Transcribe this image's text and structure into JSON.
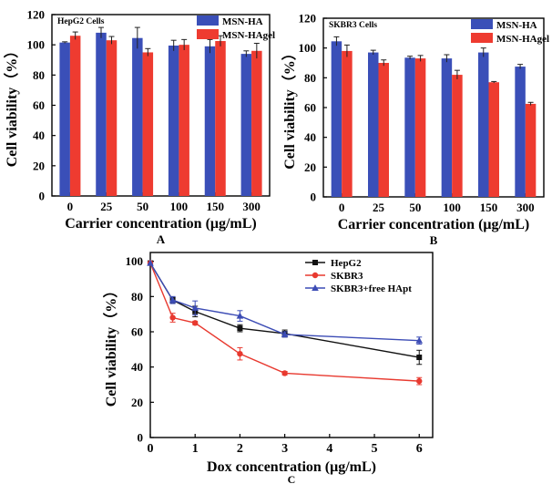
{
  "colors": {
    "blue": "#3a4fb8",
    "red": "#ee3b30",
    "black": "#111111",
    "lineBlue": "#3c4cb5",
    "lineRed": "#e8392f"
  },
  "chart_data": [
    {
      "id": "A",
      "type": "bar",
      "panel_label": "A",
      "title": "HepG2 Cells",
      "xlabel": "Carrier concentration (μg/mL)",
      "ylabel": "Cell viability（%）",
      "ylim": [
        0,
        120
      ],
      "yticks": [
        0,
        20,
        40,
        60,
        80,
        100,
        120
      ],
      "categories": [
        "0",
        "25",
        "50",
        "100",
        "150",
        "300"
      ],
      "legend_position": "top-right",
      "series": [
        {
          "name": "MSN-HA",
          "color": "#3a4fb8",
          "values": [
            101.5,
            108,
            104.5,
            99.5,
            99,
            94
          ],
          "errors": [
            0.5,
            3.5,
            7,
            3.5,
            4.5,
            2
          ]
        },
        {
          "name": "MSN-HAgel",
          "color": "#ee3b30",
          "values": [
            106,
            103,
            95,
            100,
            102.5,
            96
          ],
          "errors": [
            2.5,
            2.5,
            2.5,
            3.5,
            3.5,
            5
          ]
        }
      ]
    },
    {
      "id": "B",
      "type": "bar",
      "panel_label": "B",
      "title": "SKBR3 Cells",
      "xlabel": "Carrier concentration (μg/mL)",
      "ylabel": "Cell viability（%）",
      "ylim": [
        0,
        120
      ],
      "yticks": [
        0,
        20,
        40,
        60,
        80,
        100,
        120
      ],
      "categories": [
        "0",
        "25",
        "50",
        "100",
        "150",
        "300"
      ],
      "legend_position": "top-right",
      "series": [
        {
          "name": "MSN-HA",
          "color": "#3a4fb8",
          "values": [
            104.5,
            97,
            93.5,
            93,
            97,
            87.5
          ],
          "errors": [
            3,
            1.5,
            1,
            2.5,
            3,
            1.5
          ]
        },
        {
          "name": "MSN-HAgel",
          "color": "#ee3b30",
          "values": [
            98,
            90,
            93,
            82,
            77,
            62.5
          ],
          "errors": [
            4,
            2,
            2,
            3,
            0.5,
            1
          ]
        }
      ]
    },
    {
      "id": "C",
      "type": "line",
      "panel_label": "C",
      "title": "",
      "xlabel": "Dox concentration (μg/mL)",
      "ylabel": "Cell viability（%）",
      "xlim": [
        0,
        6.3
      ],
      "ylim": [
        0,
        105
      ],
      "xticks": [
        0,
        1,
        2,
        3,
        4,
        5,
        6
      ],
      "yticks": [
        0,
        20,
        40,
        60,
        80,
        100
      ],
      "legend_position": "top-right",
      "series": [
        {
          "name": "HepG2",
          "color": "#111111",
          "marker": "square",
          "x": [
            0,
            0.5,
            1,
            2,
            3,
            6
          ],
          "y": [
            99,
            78,
            71.5,
            62,
            59,
            45.5
          ],
          "errors": [
            0,
            1.5,
            3,
            2,
            2,
            4
          ]
        },
        {
          "name": "SKBR3",
          "color": "#e8392f",
          "marker": "circle",
          "x": [
            0,
            0.5,
            1,
            2,
            3,
            6
          ],
          "y": [
            99,
            68,
            65,
            47.5,
            36.5,
            32
          ],
          "errors": [
            0,
            2.5,
            1,
            3.5,
            1,
            2
          ]
        },
        {
          "name": "SKBR3+free HApt",
          "color": "#3c4cb5",
          "marker": "triangle",
          "x": [
            0,
            0.5,
            1,
            2,
            3,
            6
          ],
          "y": [
            99,
            78,
            73.5,
            69,
            58.5,
            55
          ],
          "errors": [
            0,
            2,
            4,
            3,
            1.5,
            2
          ]
        }
      ]
    }
  ]
}
